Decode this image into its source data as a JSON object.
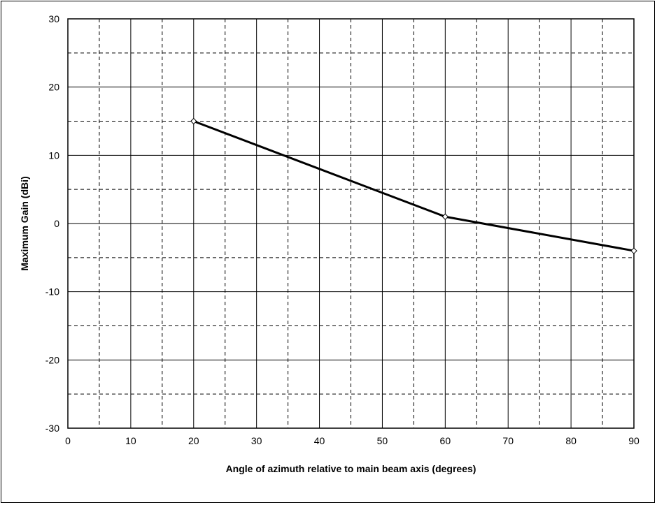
{
  "chart_data": {
    "type": "line",
    "xlabel": "Angle of azimuth relative to main beam axis (degrees)",
    "ylabel": "Maximum Gain (dBi)",
    "xlim": [
      0,
      90
    ],
    "ylim": [
      -30,
      30
    ],
    "x_ticks": [
      0,
      10,
      20,
      30,
      40,
      50,
      60,
      70,
      80,
      90
    ],
    "y_ticks": [
      30,
      20,
      10,
      0,
      -10,
      -20,
      -30
    ],
    "x_ticks_labels": [
      "0",
      "10",
      "20",
      "30",
      "40",
      "50",
      "60",
      "70",
      "80",
      "90"
    ],
    "y_ticks_labels": [
      "30",
      "20",
      "10",
      "0",
      "-10",
      "-20",
      "-30"
    ],
    "grid": {
      "major": "solid",
      "minor": "dashed",
      "x_minor_step": 5,
      "y_minor_step": 5
    },
    "legend": "none",
    "series": [
      {
        "x": [
          20,
          60,
          90
        ],
        "y": [
          15,
          1,
          -4
        ],
        "marker": "diamond",
        "color": "#000000"
      }
    ]
  }
}
